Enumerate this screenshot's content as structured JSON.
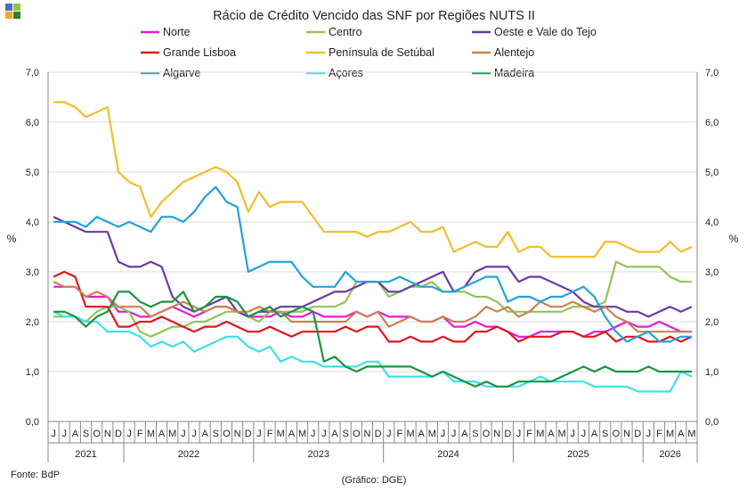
{
  "logo": {
    "colors": [
      "#4a6fb5",
      "#8dc63f",
      "#f5a623",
      "#2e7d32"
    ]
  },
  "chart_data": {
    "type": "line",
    "title": "Rácio de Crédito Vencido das SNF por Regiões NUTS II",
    "ylabel_left": "%",
    "ylabel_right": "%",
    "ylim": [
      0,
      7
    ],
    "yticks": [
      "0,0",
      "1,0",
      "2,0",
      "3,0",
      "4,0",
      "5,0",
      "6,0",
      "7,0"
    ],
    "grid": true,
    "legend_placement": "top",
    "x": [
      "J",
      "J",
      "A",
      "S",
      "O",
      "N",
      "D",
      "J",
      "F",
      "M",
      "A",
      "M",
      "J",
      "J",
      "A",
      "S",
      "O",
      "N",
      "D",
      "J",
      "F",
      "M",
      "A",
      "M",
      "J",
      "J",
      "A",
      "S",
      "O",
      "N",
      "D",
      "J",
      "F",
      "M",
      "A",
      "M",
      "J",
      "J",
      "A",
      "S",
      "O",
      "N",
      "D",
      "J",
      "F",
      "M",
      "A",
      "M",
      "J",
      "J",
      "A",
      "S",
      "O",
      "N",
      "D",
      "J",
      "F",
      "M",
      "A",
      "M"
    ],
    "years": [
      {
        "label": "2021",
        "start": 0,
        "end": 6
      },
      {
        "label": "2022",
        "start": 7,
        "end": 18
      },
      {
        "label": "2023",
        "start": 19,
        "end": 30
      },
      {
        "label": "2024",
        "start": 31,
        "end": 42
      },
      {
        "label": "2025",
        "start": 43,
        "end": 54
      },
      {
        "label": "2026",
        "start": 55,
        "end": 59
      }
    ],
    "series": [
      {
        "name": "Norte",
        "color": "#e619d9",
        "values": [
          2.7,
          2.7,
          2.7,
          2.5,
          2.5,
          2.5,
          2.2,
          2.2,
          2.1,
          2.1,
          2.2,
          2.3,
          2.2,
          2.1,
          2.2,
          2.3,
          2.3,
          2.2,
          2.1,
          2.1,
          2.1,
          2.2,
          2.1,
          2.1,
          2.2,
          2.1,
          2.1,
          2.1,
          2.2,
          2.1,
          2.2,
          2.1,
          2.1,
          2.1,
          2.0,
          2.0,
          2.1,
          1.9,
          1.9,
          2.0,
          1.9,
          1.9,
          1.8,
          1.7,
          1.7,
          1.8,
          1.8,
          1.8,
          1.8,
          1.7,
          1.8,
          1.8,
          1.9,
          2.0,
          1.9,
          1.9,
          2.0,
          1.9,
          1.8,
          1.8
        ]
      },
      {
        "name": "Centro",
        "color": "#92c356",
        "values": [
          2.1,
          2.1,
          2.1,
          2.0,
          2.2,
          2.3,
          2.3,
          2.2,
          1.8,
          1.7,
          1.8,
          1.9,
          1.9,
          2.0,
          2.0,
          2.1,
          2.2,
          2.2,
          2.1,
          2.0,
          2.2,
          2.2,
          2.2,
          2.2,
          2.3,
          2.3,
          2.3,
          2.4,
          2.8,
          2.8,
          2.8,
          2.5,
          2.6,
          2.7,
          2.7,
          2.8,
          2.6,
          2.6,
          2.6,
          2.5,
          2.5,
          2.4,
          2.2,
          2.2,
          2.2,
          2.2,
          2.2,
          2.2,
          2.3,
          2.3,
          2.3,
          2.4,
          3.2,
          3.1,
          3.1,
          3.1,
          3.1,
          2.9,
          2.8,
          2.8
        ]
      },
      {
        "name": "Oeste e Vale do Tejo",
        "color": "#6a3aa3",
        "values": [
          4.1,
          4.0,
          3.9,
          3.8,
          3.8,
          3.8,
          3.2,
          3.1,
          3.1,
          3.2,
          3.1,
          2.5,
          2.3,
          2.2,
          2.3,
          2.4,
          2.5,
          2.2,
          2.1,
          2.2,
          2.2,
          2.3,
          2.3,
          2.3,
          2.4,
          2.5,
          2.6,
          2.6,
          2.7,
          2.8,
          2.8,
          2.6,
          2.6,
          2.7,
          2.8,
          2.9,
          3.0,
          2.6,
          2.7,
          3.0,
          3.1,
          3.1,
          3.1,
          2.8,
          2.9,
          2.9,
          2.8,
          2.7,
          2.6,
          2.4,
          2.3,
          2.3,
          2.3,
          2.2,
          2.2,
          2.1,
          2.2,
          2.3,
          2.2,
          2.3
        ]
      },
      {
        "name": "Grande Lisboa",
        "color": "#e0161b",
        "values": [
          2.9,
          3.0,
          2.9,
          2.3,
          2.3,
          2.3,
          1.9,
          1.9,
          2.0,
          2.0,
          2.1,
          2.0,
          1.9,
          1.8,
          1.9,
          1.9,
          2.0,
          1.9,
          1.8,
          1.8,
          1.9,
          1.8,
          1.7,
          1.8,
          1.8,
          1.8,
          1.8,
          1.9,
          1.8,
          1.9,
          1.9,
          1.6,
          1.6,
          1.7,
          1.6,
          1.6,
          1.7,
          1.6,
          1.6,
          1.8,
          1.8,
          1.9,
          1.8,
          1.6,
          1.7,
          1.7,
          1.7,
          1.8,
          1.8,
          1.7,
          1.7,
          1.8,
          1.6,
          1.7,
          1.7,
          1.6,
          1.6,
          1.7,
          1.6,
          1.7
        ]
      },
      {
        "name": "Península de Setúbal",
        "color": "#f0be2a",
        "values": [
          6.4,
          6.4,
          6.3,
          6.1,
          6.2,
          6.3,
          5.0,
          4.8,
          4.7,
          4.1,
          4.4,
          4.6,
          4.8,
          4.9,
          5.0,
          5.1,
          5.0,
          4.8,
          4.2,
          4.6,
          4.3,
          4.4,
          4.4,
          4.4,
          4.1,
          3.8,
          3.8,
          3.8,
          3.8,
          3.7,
          3.8,
          3.8,
          3.9,
          4.0,
          3.8,
          3.8,
          3.9,
          3.4,
          3.5,
          3.6,
          3.5,
          3.5,
          3.8,
          3.4,
          3.5,
          3.5,
          3.3,
          3.3,
          3.3,
          3.3,
          3.3,
          3.6,
          3.6,
          3.5,
          3.4,
          3.4,
          3.4,
          3.6,
          3.4,
          3.5
        ]
      },
      {
        "name": "Alentejo",
        "color": "#c98350",
        "values": [
          2.8,
          2.7,
          2.7,
          2.5,
          2.6,
          2.5,
          2.3,
          2.3,
          2.3,
          2.1,
          2.2,
          2.3,
          2.4,
          2.3,
          2.2,
          2.3,
          2.3,
          2.2,
          2.2,
          2.3,
          2.2,
          2.2,
          2.0,
          2.0,
          2.0,
          2.0,
          2.0,
          2.0,
          2.2,
          2.1,
          2.2,
          1.9,
          2.0,
          2.1,
          2.0,
          2.0,
          2.1,
          2.0,
          2.0,
          2.1,
          2.3,
          2.2,
          2.3,
          2.1,
          2.2,
          2.4,
          2.3,
          2.3,
          2.4,
          2.3,
          2.2,
          2.3,
          2.1,
          2.0,
          1.8,
          1.8,
          1.8,
          1.8,
          1.8,
          1.8
        ]
      },
      {
        "name": "Algarve",
        "color": "#24a0dd",
        "values": [
          4.0,
          4.0,
          4.0,
          3.9,
          4.1,
          4.0,
          3.9,
          4.0,
          3.9,
          3.8,
          4.1,
          4.1,
          4.0,
          4.2,
          4.5,
          4.7,
          4.4,
          4.3,
          3.0,
          3.1,
          3.2,
          3.2,
          3.2,
          2.9,
          2.7,
          2.7,
          2.7,
          3.0,
          2.8,
          2.8,
          2.8,
          2.8,
          2.9,
          2.8,
          2.7,
          2.7,
          2.6,
          2.6,
          2.7,
          2.8,
          2.9,
          2.9,
          2.4,
          2.5,
          2.5,
          2.4,
          2.5,
          2.5,
          2.6,
          2.7,
          2.5,
          2.1,
          1.8,
          1.6,
          1.7,
          1.8,
          1.6,
          1.6,
          1.7,
          1.7
        ]
      },
      {
        "name": "Açores",
        "color": "#3de0e8",
        "values": [
          2.2,
          2.1,
          2.1,
          2.0,
          2.0,
          1.8,
          1.8,
          1.8,
          1.7,
          1.5,
          1.6,
          1.5,
          1.6,
          1.4,
          1.5,
          1.6,
          1.7,
          1.7,
          1.5,
          1.4,
          1.5,
          1.2,
          1.3,
          1.2,
          1.2,
          1.1,
          1.1,
          1.1,
          1.1,
          1.2,
          1.2,
          0.9,
          0.9,
          0.9,
          0.9,
          0.9,
          1.0,
          0.8,
          0.8,
          0.8,
          0.7,
          0.7,
          0.7,
          0.7,
          0.8,
          0.9,
          0.8,
          0.8,
          0.8,
          0.8,
          0.7,
          0.7,
          0.7,
          0.7,
          0.6,
          0.6,
          0.6,
          0.6,
          1.0,
          0.9
        ]
      },
      {
        "name": "Madeira",
        "color": "#1b9443",
        "values": [
          2.2,
          2.2,
          2.1,
          1.9,
          2.1,
          2.2,
          2.6,
          2.6,
          2.4,
          2.3,
          2.4,
          2.4,
          2.6,
          2.2,
          2.3,
          2.5,
          2.5,
          2.4,
          2.1,
          2.2,
          2.3,
          2.1,
          2.2,
          2.3,
          2.2,
          1.2,
          1.3,
          1.1,
          1.0,
          1.1,
          1.1,
          1.1,
          1.1,
          1.1,
          1.0,
          0.9,
          1.0,
          0.9,
          0.8,
          0.7,
          0.8,
          0.7,
          0.7,
          0.8,
          0.8,
          0.8,
          0.8,
          0.9,
          1.0,
          1.1,
          1.0,
          1.1,
          1.0,
          1.0,
          1.0,
          1.1,
          1.0,
          1.0,
          1.0,
          1.0
        ]
      }
    ]
  },
  "footer": {
    "source": "Fonte: BdP",
    "credit": "(Gráfico: DGE)"
  }
}
